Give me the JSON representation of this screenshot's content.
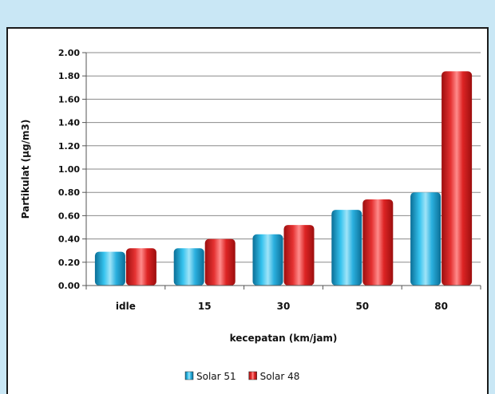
{
  "chart_data": {
    "type": "bar",
    "categories": [
      "idle",
      "15",
      "30",
      "50",
      "80"
    ],
    "series": [
      {
        "name": "Solar 51",
        "values": [
          0.29,
          0.32,
          0.44,
          0.65,
          0.8
        ],
        "color": "#1fa3d6"
      },
      {
        "name": "Solar 48",
        "values": [
          0.32,
          0.4,
          0.52,
          0.74,
          1.84
        ],
        "color": "#e02020"
      }
    ],
    "title": "",
    "xlabel": "kecepatan (km/jam)",
    "ylabel": "Partikulat (µg/m3)",
    "ylim": [
      0,
      2.0
    ],
    "yticks": [
      "0.00",
      "0.20",
      "0.40",
      "0.60",
      "0.80",
      "1.00",
      "1.20",
      "1.40",
      "1.60",
      "1.80",
      "2.00"
    ],
    "grid": true,
    "legend": "bottom"
  }
}
